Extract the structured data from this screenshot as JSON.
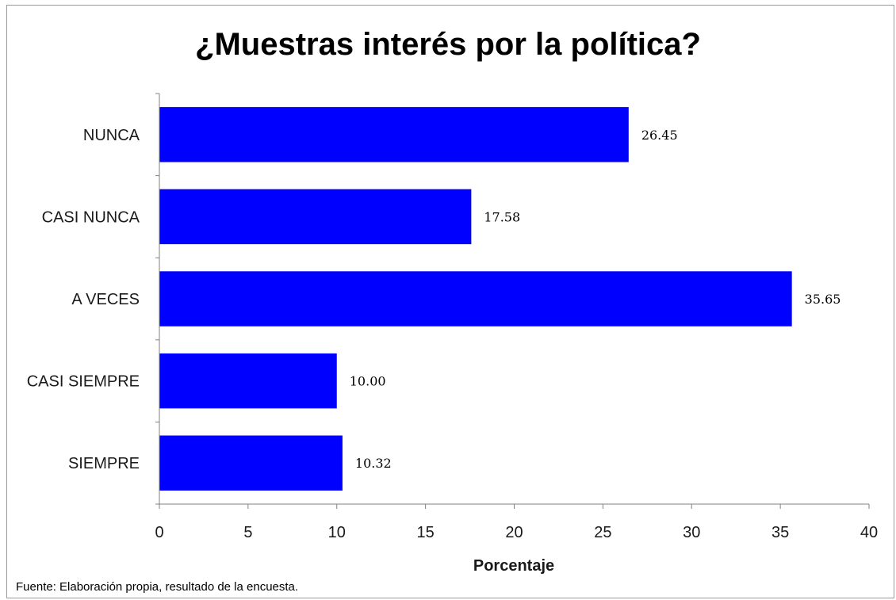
{
  "chart_data": {
    "type": "bar",
    "orientation": "horizontal",
    "title": "¿Muestras interés por la política?",
    "categories": [
      "NUNCA",
      "CASI NUNCA",
      "A VECES",
      "CASI SIEMPRE",
      "SIEMPRE"
    ],
    "values": [
      26.45,
      17.58,
      35.65,
      10.0,
      10.32
    ],
    "value_labels": [
      "26.45",
      "17.58",
      "35.65",
      "10.00",
      "10.32"
    ],
    "xlabel": "Porcentaje",
    "ylabel": "",
    "xlim": [
      0,
      40
    ],
    "xticks": [
      0,
      5,
      10,
      15,
      20,
      25,
      30,
      35,
      40
    ],
    "grid": false,
    "legend": "none",
    "bar_color": "#0000ff"
  },
  "source_note": "Fuente: Elaboración propia, resultado de la encuesta."
}
